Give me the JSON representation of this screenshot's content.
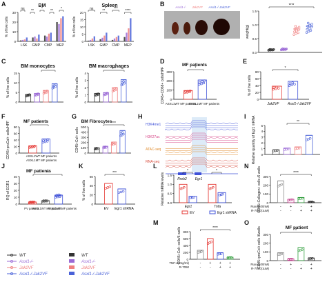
{
  "colors": {
    "wt": "#333333",
    "asxl1": "#9b6ad6",
    "jak2": "#f08080",
    "dko": "#4a62d8",
    "red": "#e53935",
    "blue": "#3f51d8",
    "green": "#2e9d3a"
  },
  "legend": {
    "wt": "WT",
    "asxl1": "Asxl1-/-",
    "jak2": "Jak2VF",
    "dko": "Asxl1-/-Jak2VF"
  },
  "panels": {
    "A": {
      "letter": "A",
      "left": {
        "title": "BM",
        "ylabel": "% of live cells",
        "categories": [
          "LSK",
          "GMP",
          "CMP",
          "MEP"
        ],
        "ylim": [
          0,
          30
        ],
        "yticks": [
          "0",
          "10",
          "20",
          "30"
        ],
        "series": [
          {
            "values": [
              1,
              4,
              6,
              20
            ]
          },
          {
            "values": [
              1.5,
              5,
              5,
              18
            ]
          },
          {
            "values": [
              2,
              3,
              8,
              24
            ]
          },
          {
            "values": [
              4,
              7,
              9,
              26
            ]
          }
        ],
        "sigs": [
          "ns",
          "**",
          "*",
          "**",
          "*"
        ]
      },
      "right": {
        "title": "Spleen",
        "ylabel": "% of live cells",
        "categories": [
          "LSK",
          "GMP",
          "CMP",
          "MEP"
        ],
        "ylim": [
          0,
          20
        ],
        "yticks": [
          "0",
          "5",
          "10",
          "15",
          "20"
        ],
        "series": [
          {
            "values": [
              0.5,
              1.5,
              1,
              3
            ]
          },
          {
            "values": [
              1,
              2.5,
              2,
              6
            ]
          },
          {
            "values": [
              2,
              4,
              3,
              9
            ]
          },
          {
            "values": [
              3.5,
              6,
              4,
              16
            ]
          }
        ],
        "sigs": [
          "ns",
          "**",
          "***",
          "****"
        ]
      }
    },
    "B": {
      "letter": "B",
      "labels": [
        "Asxl1-/-",
        "Jak2VF",
        "Asxl1-/-Jak2VF"
      ],
      "ylabel": "weight(g)",
      "ylim": [
        0,
        1.5
      ],
      "yticks": [
        "0.0",
        "0.5",
        "1.0",
        "1.5"
      ],
      "means": [
        0.1,
        0.12,
        0.85,
        0.95
      ],
      "sigs": [
        "****",
        "****",
        "****"
      ]
    },
    "C": {
      "letter": "C",
      "left": {
        "title": "BM monocytes",
        "ylabel": "% of live cells",
        "ylim": [
          0,
          15
        ],
        "yticks": [
          "0",
          "5",
          "10",
          "15"
        ],
        "means": [
          4,
          4.5,
          6,
          9.5
        ],
        "sigs": [
          "ns",
          "*",
          "***"
        ]
      },
      "right": {
        "title": "BM macrophages",
        "ylabel": "% of live cells",
        "ylim": [
          0,
          4
        ],
        "yticks": [
          "0",
          "1",
          "2",
          "3",
          "4"
        ],
        "means": [
          1.2,
          1.3,
          2,
          3.1
        ],
        "sigs": [
          "*",
          "***"
        ]
      }
    },
    "D": {
      "letter": "D",
      "title": "MF patients",
      "ylabel": "CD45+CD68+ cells/HPF",
      "ylim": [
        0,
        300
      ],
      "yticks": [
        "0",
        "100",
        "200",
        "300"
      ],
      "categories": [
        "ASXL1WT MF patients",
        "ASXL1MT MF patients"
      ],
      "means": [
        95,
        210
      ],
      "sig": "*"
    },
    "E": {
      "letter": "E",
      "ylabel": "% of live cells",
      "ylim": [
        0,
        80
      ],
      "yticks": [
        "0",
        "20",
        "40",
        "60",
        "80"
      ],
      "categories": [
        "Jak2VF",
        "Asxl1-/-Jak2VF"
      ],
      "means": [
        38,
        52
      ],
      "sig": "*"
    },
    "F": {
      "letter": "F",
      "title": "MF patients",
      "ylabel": "CD45+proCol+ cells/HPF",
      "ylim": [
        0,
        80
      ],
      "yticks": [
        "0",
        "20",
        "40",
        "60",
        "80"
      ],
      "categories": [
        "ASXL1WT MF patients",
        "ASXL1MT MF patients"
      ],
      "means": [
        22,
        43
      ],
      "sig": "*"
    },
    "G": {
      "letter": "G",
      "title": "BM Fibrocytes",
      "ylabel": "CD45+Col+ cells",
      "ylim": [
        0,
        500
      ],
      "yticks": [
        "0",
        "100",
        "200",
        "300",
        "400",
        "500"
      ],
      "means": [
        100,
        130,
        210,
        430
      ],
      "sigs": [
        "**",
        "***"
      ]
    },
    "H": {
      "letter": "H",
      "tracks": [
        "H3K4me1",
        "H3K27ac",
        "ATAC-seq",
        "RNA-seq"
      ],
      "genes": [
        "Rreb2",
        "Egr1"
      ]
    },
    "I": {
      "letter": "I",
      "ylabel": "Relative quantity of Egr1 mRNA",
      "ylim": [
        0,
        5
      ],
      "yticks": [
        "0",
        "1",
        "2",
        "3",
        "4",
        "5"
      ],
      "means": [
        0.8,
        1.1,
        1.3,
        3.3
      ],
      "sigs": [
        "**",
        "**",
        "**"
      ]
    },
    "J": {
      "letter": "J",
      "title": "MF patients",
      "ylabel": "RQ of EGR1",
      "ylim": [
        0,
        40
      ],
      "yticks": [
        "0",
        "10",
        "20",
        "30",
        "40"
      ],
      "categories": [
        "PV patients",
        "ASXL1WT MF patients",
        "ASXL1MT MF patients"
      ],
      "means": [
        3,
        5,
        13
      ],
      "sigs": [
        "**",
        "*"
      ]
    },
    "K": {
      "letter": "K",
      "ylabel": "% of live cells",
      "ylim": [
        0,
        60
      ],
      "yticks": [
        "0",
        "20",
        "40",
        "60"
      ],
      "categories": [
        "EV",
        "Egr1 shRNA"
      ],
      "means": [
        45,
        33
      ],
      "sig": "***"
    },
    "L": {
      "letter": "L",
      "ylabel": "Relative mRNA levels",
      "ylim": [
        0,
        1.5
      ],
      "yticks": [
        "0.0",
        "0.5",
        "1.0",
        "1.5"
      ],
      "groups": [
        "Egr1",
        "Tnfa"
      ],
      "series": [
        {
          "name": "EV",
          "values": [
            1.0,
            1.0
          ]
        },
        {
          "name": "Egr1 shRNA",
          "values": [
            0.35,
            0.55
          ]
        }
      ],
      "sigs": [
        "*",
        "*"
      ]
    },
    "M": {
      "letter": "M",
      "ylabel": "CD45+Col+ cells/6 wells",
      "ylim": [
        0,
        800
      ],
      "yticks": [
        "0",
        "200",
        "400",
        "600",
        "800"
      ],
      "means": [
        260,
        600,
        190,
        60
      ],
      "sigs": [
        "****",
        "***",
        "****"
      ],
      "row1_label": "TNF-α(2ng/ml)",
      "row2_label": "R-7050",
      "row1": [
        "-",
        "+",
        "+",
        "+"
      ],
      "row2": [
        "-",
        "-",
        "+",
        "+"
      ]
    },
    "N": {
      "letter": "N",
      "ylabel": "CD45+Collagen+ cells /6 wells",
      "ylim": [
        0,
        300
      ],
      "yticks": [
        "0",
        "100",
        "200",
        "300"
      ],
      "means": [
        250,
        40,
        60,
        10
      ],
      "sigs": [
        "****",
        "***"
      ],
      "row1_label": "Ruxo(100nM)",
      "row2_label": "R-7050(1uM)",
      "row1": [
        "-",
        "+",
        "-",
        "+"
      ],
      "row2": [
        "-",
        "-",
        "+",
        "+"
      ]
    },
    "O": {
      "letter": "O",
      "title": "MF patient",
      "ylabel": "CD45+proCol+ cells /6wells",
      "ylim": [
        0,
        300
      ],
      "yticks": [
        "0",
        "100",
        "200",
        "300"
      ],
      "means": [
        90,
        20,
        150,
        30
      ],
      "sigs": [
        "*",
        "**",
        "**"
      ],
      "row1_label": "Ruxo(100nM)",
      "row2_label": "R-7050(1uM)",
      "row1": [
        "-",
        "+",
        "-",
        "+"
      ],
      "row2": [
        "-",
        "-",
        "+",
        "+"
      ]
    }
  }
}
